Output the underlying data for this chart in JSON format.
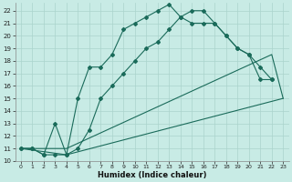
{
  "xlabel": "Humidex (Indice chaleur)",
  "background_color": "#c8ebe5",
  "grid_color": "#aad4cc",
  "line_color": "#1a6b5a",
  "xlim": [
    -0.5,
    23.5
  ],
  "ylim": [
    10,
    22.6
  ],
  "yticks": [
    10,
    11,
    12,
    13,
    14,
    15,
    16,
    17,
    18,
    19,
    20,
    21,
    22
  ],
  "xticks": [
    0,
    1,
    2,
    3,
    4,
    5,
    6,
    7,
    8,
    9,
    10,
    11,
    12,
    13,
    14,
    15,
    16,
    17,
    18,
    19,
    20,
    21,
    22,
    23
  ],
  "curve1_x": [
    0,
    1,
    2,
    3,
    4,
    5,
    6,
    7,
    8,
    9,
    10,
    11,
    12,
    13,
    14,
    15,
    16,
    17,
    18,
    19,
    20,
    21,
    22
  ],
  "curve1_y": [
    11.0,
    11.0,
    10.5,
    10.5,
    10.5,
    15.0,
    17.5,
    17.5,
    18.5,
    20.5,
    21.0,
    21.5,
    22.0,
    22.5,
    21.5,
    22.0,
    22.0,
    21.0,
    20.0,
    19.0,
    18.5,
    17.5,
    16.5
  ],
  "curve2_x": [
    0,
    1,
    2,
    3,
    4,
    5,
    6,
    7,
    8,
    9,
    10,
    11,
    12,
    13,
    14,
    15,
    16,
    17,
    18,
    19,
    20,
    21,
    22
  ],
  "curve2_y": [
    11.0,
    11.0,
    10.5,
    13.0,
    10.5,
    11.0,
    12.5,
    15.0,
    16.0,
    17.0,
    18.0,
    19.0,
    19.5,
    20.5,
    21.5,
    21.0,
    21.0,
    21.0,
    20.0,
    19.0,
    18.5,
    16.5,
    16.5
  ],
  "line1_x": [
    0,
    4,
    22,
    23
  ],
  "line1_y": [
    11.0,
    11.0,
    18.5,
    15.0
  ],
  "line2_x": [
    0,
    4,
    23
  ],
  "line2_y": [
    11.0,
    10.5,
    15.0
  ]
}
